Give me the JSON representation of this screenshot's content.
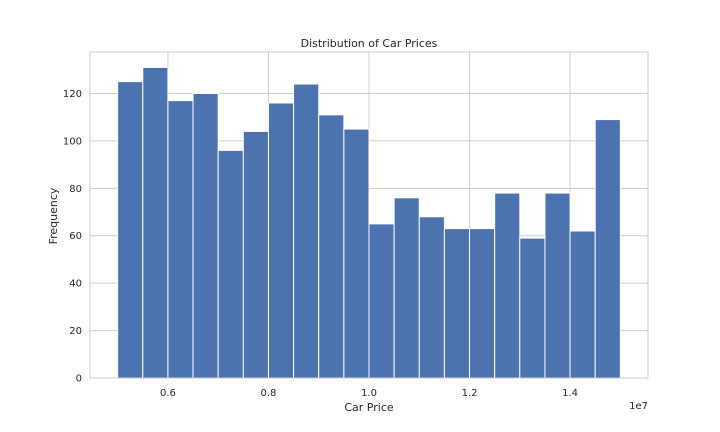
{
  "chart_data": {
    "type": "bar",
    "title": "Distribution of Car Prices",
    "xlabel": "Car Price",
    "ylabel": "Frequency",
    "x_offset_label": "1e7",
    "bin_edges": [
      0.5,
      0.55,
      0.6,
      0.65,
      0.7,
      0.75,
      0.8,
      0.85,
      0.9,
      0.95,
      1.0,
      1.05,
      1.1,
      1.15,
      1.2,
      1.25,
      1.3,
      1.35,
      1.4,
      1.45,
      1.5
    ],
    "values": [
      125,
      131,
      117,
      120,
      96,
      104,
      116,
      124,
      111,
      105,
      65,
      76,
      68,
      63,
      63,
      78,
      59,
      78,
      62,
      109
    ],
    "xlim": [
      0.445,
      1.555
    ],
    "ylim": [
      0,
      137.5
    ],
    "x_ticks": [
      0.6,
      0.8,
      1.0,
      1.2,
      1.4
    ],
    "x_tick_labels": [
      "0.6",
      "0.8",
      "1.0",
      "1.2",
      "1.4"
    ],
    "y_ticks": [
      0,
      20,
      40,
      60,
      80,
      100,
      120
    ],
    "y_tick_labels": [
      "0",
      "20",
      "40",
      "60",
      "80",
      "100",
      "120"
    ],
    "grid": true,
    "bar_color": "#4c72b0"
  }
}
